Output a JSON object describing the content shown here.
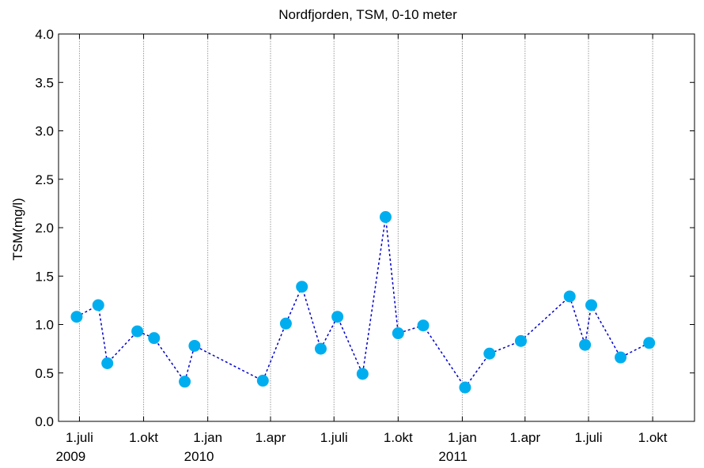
{
  "chart_data": {
    "type": "line",
    "title": "Nordfjorden, TSM, 0-10 meter",
    "xlabel": "",
    "ylabel": "TSM(mg/l)",
    "ylim": [
      0,
      4
    ],
    "xlim": [
      "2009-06-01",
      "2011-11-30"
    ],
    "yticks": [
      "0.0",
      "0.5",
      "1.0",
      "1.5",
      "2.0",
      "2.5",
      "3.0",
      "3.5",
      "4.0"
    ],
    "xticks": [
      {
        "date": "2009-07-01",
        "label": "1.juli",
        "year": "2009"
      },
      {
        "date": "2009-10-01",
        "label": "1.okt",
        "year": ""
      },
      {
        "date": "2010-01-01",
        "label": "1.jan",
        "year": "2010"
      },
      {
        "date": "2010-04-01",
        "label": "1.apr",
        "year": ""
      },
      {
        "date": "2010-07-01",
        "label": "1.juli",
        "year": ""
      },
      {
        "date": "2010-10-01",
        "label": "1.okt",
        "year": ""
      },
      {
        "date": "2011-01-01",
        "label": "1.jan",
        "year": "2011"
      },
      {
        "date": "2011-04-01",
        "label": "1.apr",
        "year": ""
      },
      {
        "date": "2011-07-01",
        "label": "1.juli",
        "year": ""
      },
      {
        "date": "2011-10-01",
        "label": "1.okt",
        "year": ""
      }
    ],
    "grid": "vertical dotted lines at month ticks",
    "series": [
      {
        "color": "#00aeef",
        "line_style": "dashed",
        "line_color": "#0000cc",
        "points": [
          {
            "x": "2009-06-27",
            "y": 1.08
          },
          {
            "x": "2009-07-28",
            "y": 1.2
          },
          {
            "x": "2009-08-10",
            "y": 0.6
          },
          {
            "x": "2009-09-22",
            "y": 0.93
          },
          {
            "x": "2009-10-16",
            "y": 0.86
          },
          {
            "x": "2009-11-29",
            "y": 0.41
          },
          {
            "x": "2009-12-13",
            "y": 0.78
          },
          {
            "x": "2010-03-21",
            "y": 0.42
          },
          {
            "x": "2010-04-23",
            "y": 1.01
          },
          {
            "x": "2010-05-16",
            "y": 1.39
          },
          {
            "x": "2010-06-12",
            "y": 0.75
          },
          {
            "x": "2010-07-06",
            "y": 1.08
          },
          {
            "x": "2010-08-11",
            "y": 0.49
          },
          {
            "x": "2010-09-13",
            "y": 2.11
          },
          {
            "x": "2010-10-01",
            "y": 0.91
          },
          {
            "x": "2010-11-06",
            "y": 0.99
          },
          {
            "x": "2011-01-05",
            "y": 0.35
          },
          {
            "x": "2011-02-09",
            "y": 0.7
          },
          {
            "x": "2011-03-26",
            "y": 0.83
          },
          {
            "x": "2011-06-04",
            "y": 1.29
          },
          {
            "x": "2011-06-26",
            "y": 0.79
          },
          {
            "x": "2011-07-05",
            "y": 1.2
          },
          {
            "x": "2011-08-16",
            "y": 0.66
          },
          {
            "x": "2011-09-26",
            "y": 0.81
          }
        ]
      }
    ]
  }
}
